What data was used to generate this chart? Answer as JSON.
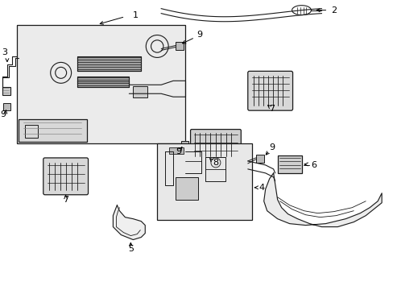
{
  "background_color": "#ffffff",
  "line_color": "#1a1a1a",
  "fill_light": "#e8e8e8",
  "fill_mid": "#cccccc",
  "fill_dark": "#aaaaaa",
  "figsize": [
    4.89,
    3.6
  ],
  "dpi": 100
}
